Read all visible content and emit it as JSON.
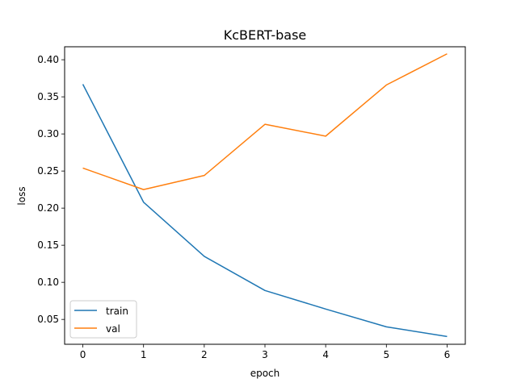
{
  "chart_data": {
    "type": "line",
    "title": "KcBERT-base",
    "xlabel": "epoch",
    "ylabel": "loss",
    "x": [
      0,
      1,
      2,
      3,
      4,
      5,
      6
    ],
    "xlim": [
      -0.3,
      6.3
    ],
    "ylim": [
      0.0165,
      0.4175
    ],
    "xticks": [
      0,
      1,
      2,
      3,
      4,
      5,
      6
    ],
    "yticks": [
      0.05,
      0.1,
      0.15,
      0.2,
      0.25,
      0.3,
      0.35,
      0.4
    ],
    "ytick_labels": [
      "0.05",
      "0.10",
      "0.15",
      "0.20",
      "0.25",
      "0.30",
      "0.35",
      "0.40"
    ],
    "grid": false,
    "legend_position": "lower-left",
    "series": [
      {
        "name": "train",
        "color": "#1f77b4",
        "values": [
          0.367,
          0.208,
          0.135,
          0.089,
          0.064,
          0.04,
          0.027
        ]
      },
      {
        "name": "val",
        "color": "#ff7f0e",
        "values": [
          0.254,
          0.225,
          0.244,
          0.313,
          0.297,
          0.366,
          0.408
        ]
      }
    ]
  }
}
